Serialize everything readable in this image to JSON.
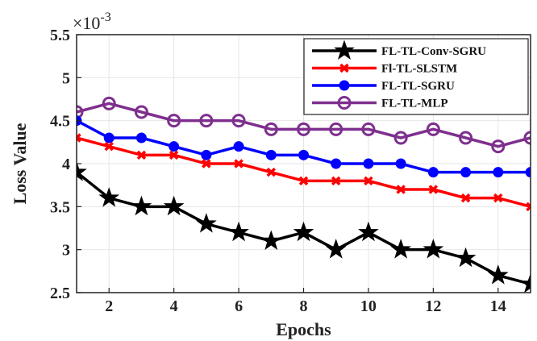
{
  "chart_data": {
    "type": "line",
    "title": "",
    "xlabel": "Epochs",
    "ylabel": "Loss Value",
    "y_multiplier_base": "×10",
    "y_multiplier_exponent": "-3",
    "xlim": [
      1,
      15
    ],
    "ylim": [
      2.5,
      5.5
    ],
    "x_ticks": [
      2,
      4,
      6,
      8,
      10,
      12,
      14
    ],
    "y_ticks": [
      2.5,
      3,
      3.5,
      4,
      4.5,
      5,
      5.5
    ],
    "grid": true,
    "legend_position": "top-right",
    "x": [
      1,
      2,
      3,
      4,
      5,
      6,
      7,
      8,
      9,
      10,
      11,
      12,
      13,
      14,
      15
    ],
    "series": [
      {
        "name": "FL-TL-Conv-SGRU",
        "color": "#000000",
        "marker": "star",
        "values": [
          3.9,
          3.6,
          3.5,
          3.5,
          3.3,
          3.2,
          3.1,
          3.2,
          3.0,
          3.2,
          3.0,
          3.0,
          2.9,
          2.7,
          2.6
        ]
      },
      {
        "name": "Fl-TL-SLSTM",
        "color": "#ff0000",
        "marker": "x",
        "values": [
          4.3,
          4.2,
          4.1,
          4.1,
          4.0,
          4.0,
          3.9,
          3.8,
          3.8,
          3.8,
          3.7,
          3.7,
          3.6,
          3.6,
          3.5
        ]
      },
      {
        "name": "FL-TL-SGRU",
        "color": "#0000ff",
        "marker": "filled-circle",
        "values": [
          4.5,
          4.3,
          4.3,
          4.2,
          4.1,
          4.2,
          4.1,
          4.1,
          4.0,
          4.0,
          4.0,
          3.9,
          3.9,
          3.9,
          3.9
        ]
      },
      {
        "name": "FL-TL-MLP",
        "color": "#7e2f8e",
        "marker": "open-circle",
        "values": [
          4.6,
          4.7,
          4.6,
          4.5,
          4.5,
          4.5,
          4.4,
          4.4,
          4.4,
          4.4,
          4.3,
          4.4,
          4.3,
          4.2,
          4.3
        ]
      }
    ]
  }
}
